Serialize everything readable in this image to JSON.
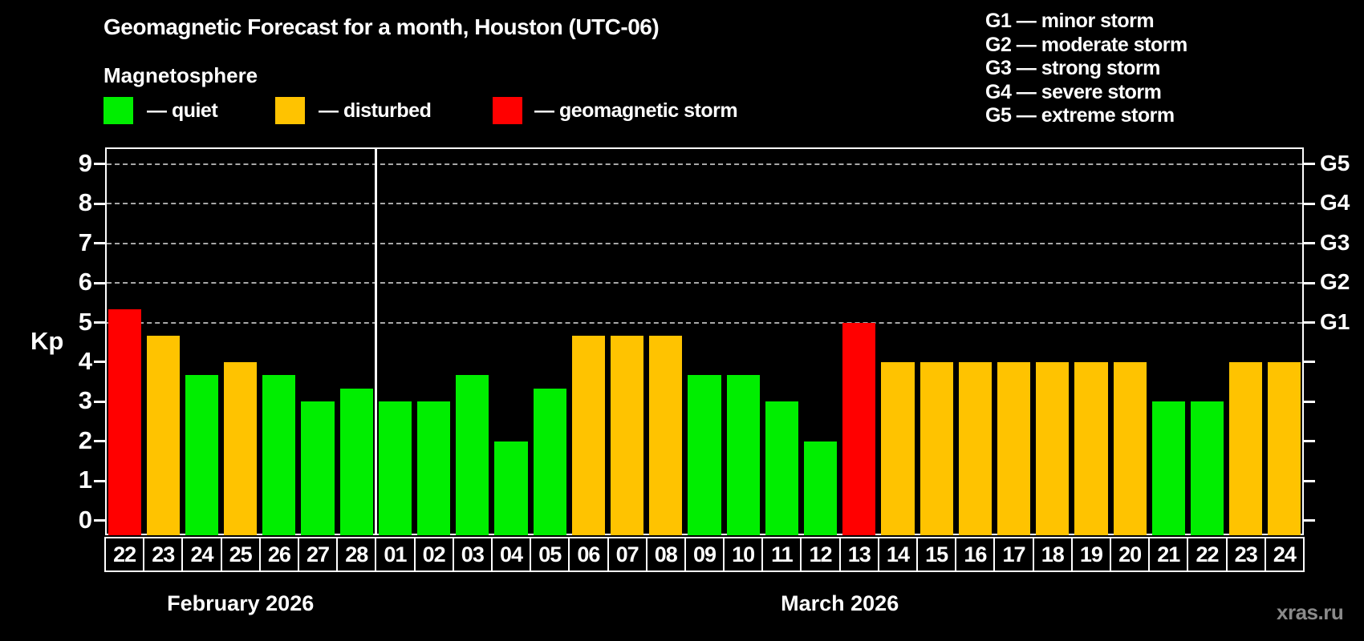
{
  "title": "Geomagnetic Forecast for a month, Houston (UTC-06)",
  "subtitle": "Magnetosphere",
  "legend": {
    "quiet_label": "— quiet",
    "disturbed_label": "— disturbed",
    "storm_label": "— geomagnetic storm"
  },
  "g_legend": [
    "G1 — minor storm",
    "G2 — moderate storm",
    "G3 — strong storm",
    "G4 — severe storm",
    "G5 — extreme storm"
  ],
  "watermark": "xras.ru",
  "chart_data": {
    "type": "bar",
    "title": "Geomagnetic Forecast for a month, Houston (UTC-06)",
    "ylabel": "Kp",
    "ylim": [
      -0.4,
      9.4
    ],
    "yticks": [
      0,
      1,
      2,
      3,
      4,
      5,
      6,
      7,
      8,
      9
    ],
    "grid_kp_levels": [
      5,
      6,
      7,
      8,
      9
    ],
    "right_axis_labels": [
      {
        "kp": 5,
        "label": "G1"
      },
      {
        "kp": 6,
        "label": "G2"
      },
      {
        "kp": 7,
        "label": "G3"
      },
      {
        "kp": 8,
        "label": "G4"
      },
      {
        "kp": 9,
        "label": "G5"
      }
    ],
    "months": [
      {
        "label": "February 2026",
        "days": 7
      },
      {
        "label": "March 2026",
        "days": 24
      }
    ],
    "categories": [
      "22",
      "23",
      "24",
      "25",
      "26",
      "27",
      "28",
      "01",
      "02",
      "03",
      "04",
      "05",
      "06",
      "07",
      "08",
      "09",
      "10",
      "11",
      "12",
      "13",
      "14",
      "15",
      "16",
      "17",
      "18",
      "19",
      "20",
      "21",
      "22",
      "23",
      "24"
    ],
    "values": [
      5.33,
      4.67,
      3.67,
      4.0,
      3.67,
      3.0,
      3.33,
      3.0,
      3.0,
      3.67,
      2.0,
      3.33,
      4.67,
      4.67,
      4.67,
      3.67,
      3.67,
      3.0,
      2.0,
      5.0,
      4.0,
      4.0,
      4.0,
      4.0,
      4.0,
      4.0,
      4.0,
      3.0,
      3.0,
      4.0,
      4.0
    ],
    "statuses": [
      "storm",
      "disturbed",
      "quiet",
      "disturbed",
      "quiet",
      "quiet",
      "quiet",
      "quiet",
      "quiet",
      "quiet",
      "quiet",
      "quiet",
      "disturbed",
      "disturbed",
      "disturbed",
      "quiet",
      "quiet",
      "quiet",
      "quiet",
      "storm",
      "disturbed",
      "disturbed",
      "disturbed",
      "disturbed",
      "disturbed",
      "disturbed",
      "disturbed",
      "quiet",
      "quiet",
      "disturbed",
      "disturbed"
    ],
    "colors": {
      "quiet": "#00ee00",
      "disturbed": "#ffc300",
      "storm": "#ff0000",
      "grid": "#a8a8a8",
      "axis": "#ffffff",
      "background": "#000000"
    },
    "legend_position": "top-left",
    "grid": "dashed-horizontal-on-storm-levels"
  }
}
